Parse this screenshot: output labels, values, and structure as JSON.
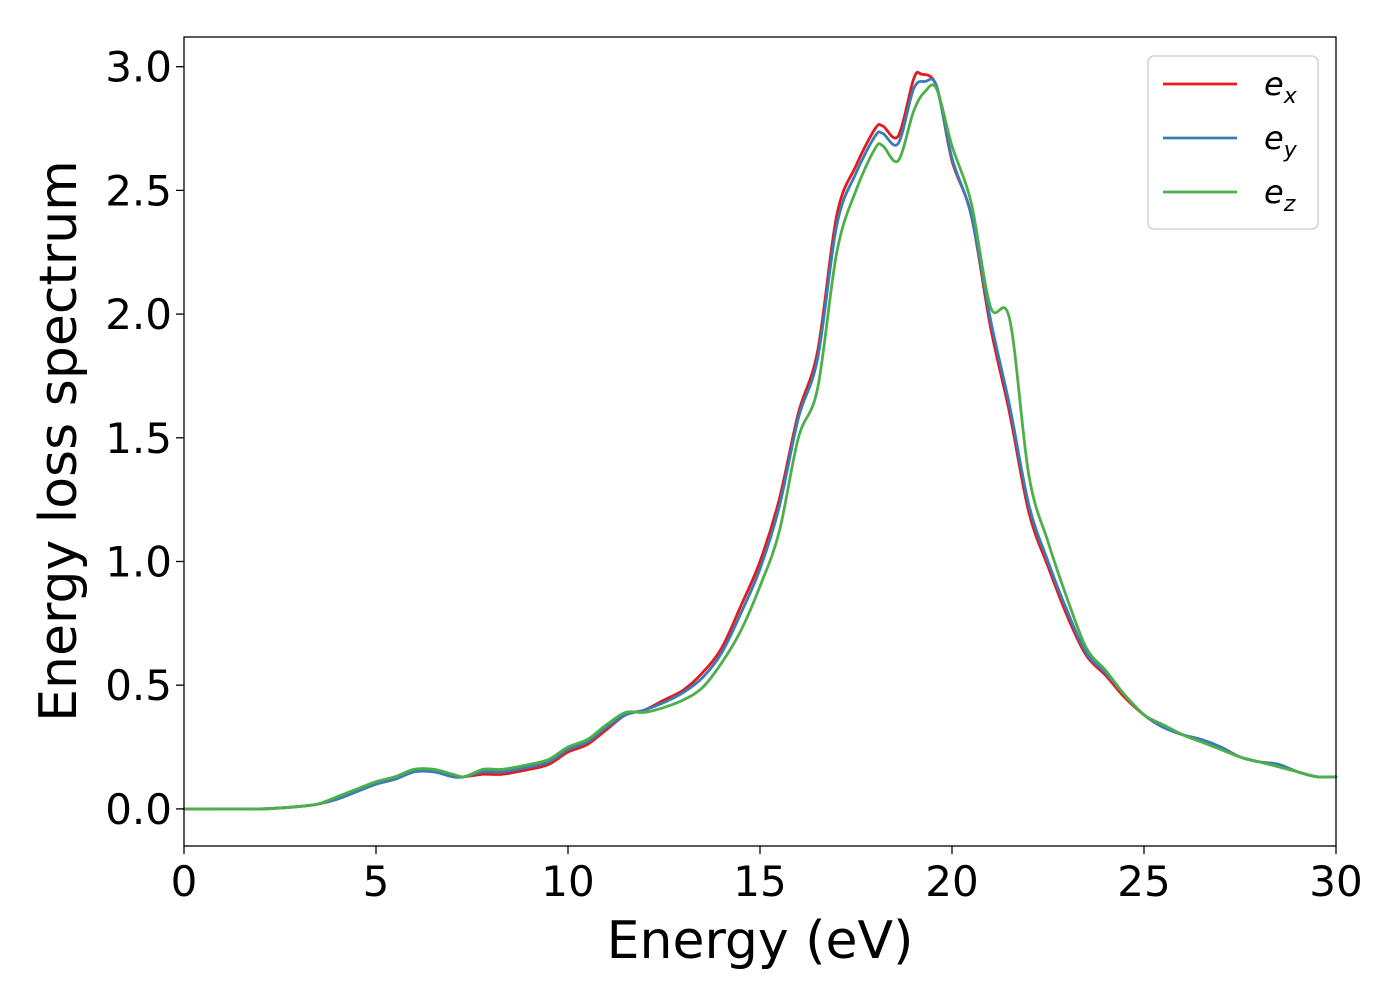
{
  "chart_data": {
    "type": "line",
    "xlabel": "Energy (eV)",
    "ylabel": "Energy loss spectrum",
    "xlim": [
      0,
      30
    ],
    "ylim": [
      -0.15,
      3.12
    ],
    "xticks": [
      0,
      5,
      10,
      15,
      20,
      25,
      30
    ],
    "xtick_labels": [
      "0",
      "5",
      "10",
      "15",
      "20",
      "25",
      "30"
    ],
    "yticks": [
      0.0,
      0.5,
      1.0,
      1.5,
      2.0,
      2.5,
      3.0
    ],
    "ytick_labels": [
      "0.0",
      "0.5",
      "1.0",
      "1.5",
      "2.0",
      "2.5",
      "3.0"
    ],
    "grid": false,
    "legend_position": "top-right",
    "series": [
      {
        "name": "e_x",
        "label_base": "e",
        "label_sub": "x",
        "color": "#e41a1c",
        "x": [
          0,
          2,
          3,
          3.5,
          4,
          4.5,
          5,
          5.5,
          6,
          6.5,
          7,
          7.3,
          7.8,
          8.3,
          9,
          9.5,
          10,
          10.5,
          11,
          11.5,
          12,
          12.5,
          13,
          13.5,
          14,
          14.5,
          15,
          15.5,
          16,
          16.5,
          17,
          17.5,
          18,
          18.2,
          18.6,
          19,
          19.2,
          19.6,
          20,
          20.5,
          21,
          21.5,
          22,
          22.5,
          23,
          23.5,
          24,
          24.5,
          25,
          25.5,
          26,
          26.5,
          27,
          27.5,
          28,
          28.5,
          29,
          29.5,
          30
        ],
        "y": [
          0,
          0,
          0.01,
          0.02,
          0.04,
          0.07,
          0.1,
          0.12,
          0.15,
          0.15,
          0.13,
          0.13,
          0.14,
          0.14,
          0.16,
          0.18,
          0.23,
          0.26,
          0.32,
          0.38,
          0.4,
          0.44,
          0.48,
          0.55,
          0.65,
          0.82,
          1.0,
          1.25,
          1.6,
          1.85,
          2.4,
          2.6,
          2.75,
          2.76,
          2.72,
          2.95,
          2.97,
          2.92,
          2.62,
          2.4,
          1.95,
          1.6,
          1.2,
          0.98,
          0.78,
          0.62,
          0.54,
          0.45,
          0.38,
          0.33,
          0.3,
          0.28,
          0.25,
          0.21,
          0.19,
          0.18,
          0.15,
          0.13,
          0.13
        ]
      },
      {
        "name": "e_y",
        "label_base": "e",
        "label_sub": "y",
        "color": "#377eb8",
        "x": [
          0,
          2,
          3,
          3.5,
          4,
          4.5,
          5,
          5.5,
          6,
          6.5,
          7,
          7.3,
          7.8,
          8.3,
          9,
          9.5,
          10,
          10.5,
          11,
          11.5,
          12,
          12.5,
          13,
          13.5,
          14,
          14.5,
          15,
          15.5,
          16,
          16.5,
          17,
          17.5,
          18,
          18.2,
          18.6,
          19,
          19.3,
          19.6,
          20,
          20.5,
          21,
          21.5,
          22,
          22.5,
          23,
          23.5,
          24,
          24.5,
          25,
          25.5,
          26,
          26.5,
          27,
          27.5,
          28,
          28.5,
          29,
          29.5,
          30
        ],
        "y": [
          0,
          0,
          0.01,
          0.02,
          0.04,
          0.07,
          0.1,
          0.12,
          0.15,
          0.15,
          0.13,
          0.13,
          0.15,
          0.15,
          0.17,
          0.19,
          0.24,
          0.27,
          0.33,
          0.38,
          0.4,
          0.43,
          0.47,
          0.53,
          0.63,
          0.79,
          0.97,
          1.22,
          1.58,
          1.82,
          2.36,
          2.57,
          2.72,
          2.73,
          2.69,
          2.91,
          2.94,
          2.92,
          2.63,
          2.4,
          1.98,
          1.63,
          1.23,
          1.0,
          0.8,
          0.63,
          0.55,
          0.46,
          0.38,
          0.33,
          0.3,
          0.28,
          0.25,
          0.21,
          0.19,
          0.18,
          0.15,
          0.13,
          0.13
        ]
      },
      {
        "name": "e_z",
        "label_base": "e",
        "label_sub": "z",
        "color": "#4daf4a",
        "x": [
          0,
          2,
          3,
          3.5,
          4,
          4.5,
          5,
          5.5,
          6,
          6.5,
          7,
          7.3,
          7.8,
          8.3,
          9,
          9.5,
          10,
          10.5,
          11,
          11.5,
          12,
          12.5,
          13,
          13.5,
          14,
          14.5,
          15,
          15.5,
          16,
          16.5,
          17,
          17.5,
          18,
          18.2,
          18.6,
          19,
          19.3,
          19.6,
          20,
          20.5,
          21,
          21.5,
          22,
          22.5,
          23,
          23.5,
          24,
          24.5,
          25,
          25.5,
          26,
          26.5,
          27,
          27.5,
          28,
          28.5,
          29,
          29.5,
          30
        ],
        "y": [
          0,
          0,
          0.01,
          0.02,
          0.05,
          0.08,
          0.11,
          0.13,
          0.16,
          0.16,
          0.14,
          0.13,
          0.16,
          0.16,
          0.18,
          0.2,
          0.25,
          0.28,
          0.34,
          0.39,
          0.39,
          0.41,
          0.44,
          0.49,
          0.59,
          0.72,
          0.9,
          1.12,
          1.5,
          1.7,
          2.25,
          2.5,
          2.67,
          2.68,
          2.62,
          2.82,
          2.9,
          2.91,
          2.68,
          2.45,
          2.03,
          1.98,
          1.35,
          1.08,
          0.85,
          0.65,
          0.56,
          0.46,
          0.38,
          0.34,
          0.3,
          0.27,
          0.24,
          0.21,
          0.19,
          0.17,
          0.15,
          0.13,
          0.13
        ]
      }
    ]
  }
}
